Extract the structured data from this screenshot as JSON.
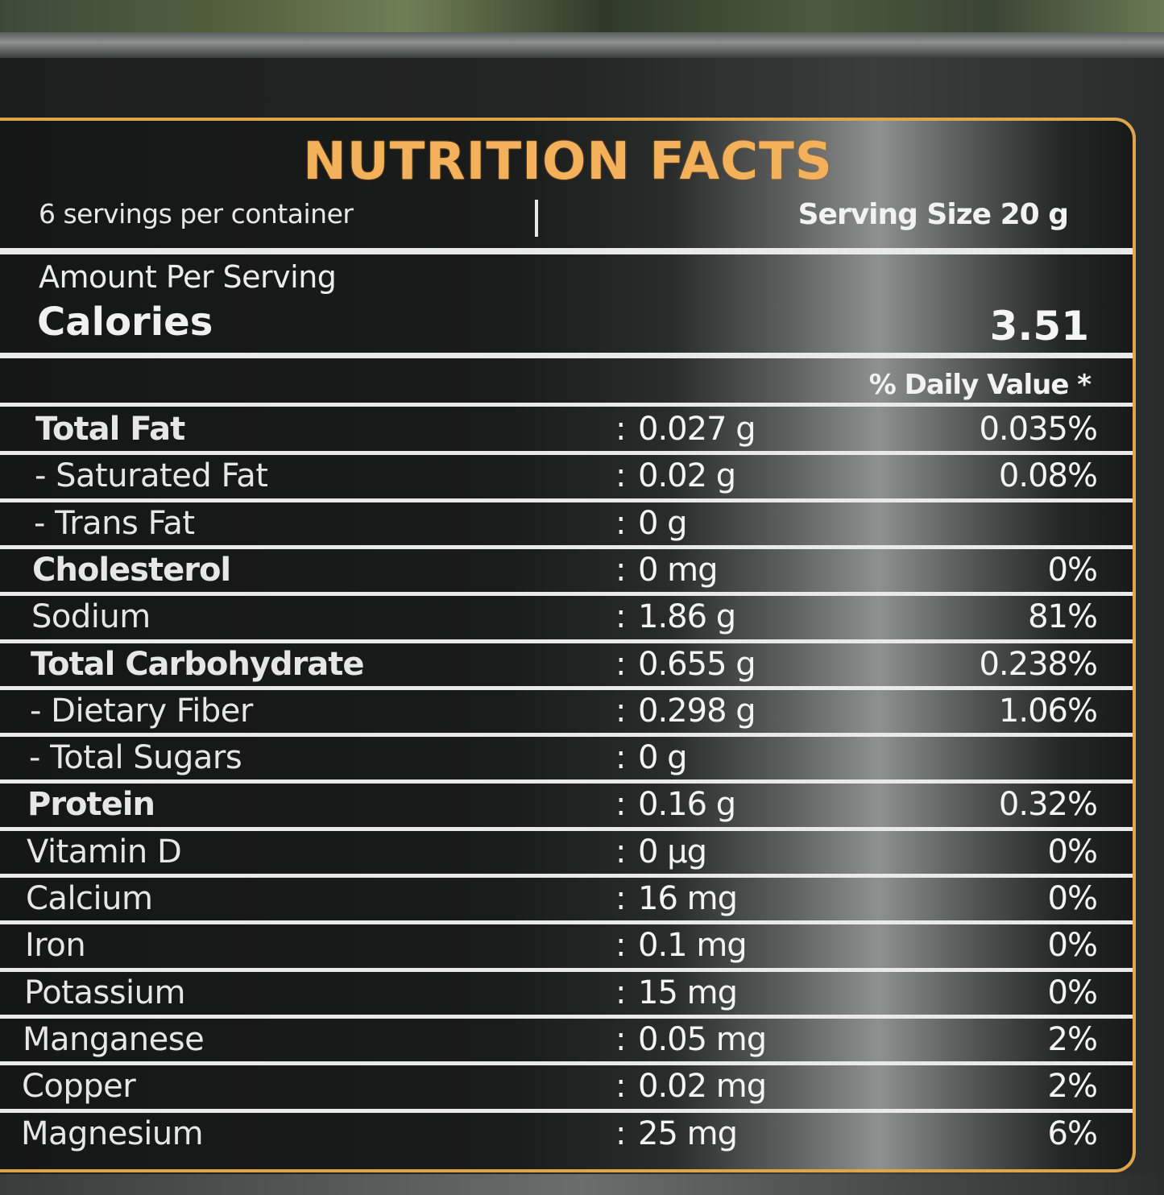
{
  "title": "NUTRITION FACTS",
  "servings_per_container": "6 servings per container",
  "serving_size": "Serving Size 20 g",
  "amount_per_serving": "Amount Per Serving",
  "calories_label": "Calories",
  "calories_value": "3.51",
  "daily_value_header": "% Daily Value *",
  "colors": {
    "accent": "#e0a54c",
    "title": "#f2b15a",
    "text": "#e6e6e6"
  },
  "nutrients": [
    {
      "name": "Total Fat",
      "bold": true,
      "colon": ":",
      "amount": "0.027 g",
      "dv": "0.035%"
    },
    {
      "name": "- Saturated Fat",
      "bold": false,
      "colon": ":",
      "amount": "0.02 g",
      "dv": "0.08%"
    },
    {
      "name": "- Trans Fat",
      "bold": false,
      "colon": ":",
      "amount": "0 g",
      "dv": ""
    },
    {
      "name": "Cholesterol",
      "bold": true,
      "colon": ":",
      "amount": "0 mg",
      "dv": "0%"
    },
    {
      "name": "Sodium",
      "bold": false,
      "colon": ":",
      "amount": "1.86 g",
      "dv": "81%"
    },
    {
      "name": "Total Carbohydrate",
      "bold": true,
      "colon": ":",
      "amount": "0.655 g",
      "dv": "0.238%"
    },
    {
      "name": "- Dietary Fiber",
      "bold": false,
      "colon": ":",
      "amount": "0.298 g",
      "dv": "1.06%"
    },
    {
      "name": "- Total Sugars",
      "bold": false,
      "colon": ":",
      "amount": "0 g",
      "dv": ""
    },
    {
      "name": "Protein",
      "bold": true,
      "colon": ":",
      "amount": "0.16 g",
      "dv": "0.32%"
    },
    {
      "name": "Vitamin D",
      "bold": false,
      "colon": ":",
      "amount": "0 µg",
      "dv": "0%"
    },
    {
      "name": "Calcium",
      "bold": false,
      "colon": ":",
      "amount": "16 mg",
      "dv": "0%"
    },
    {
      "name": "Iron",
      "bold": false,
      "colon": ":",
      "amount": "0.1 mg",
      "dv": "0%"
    },
    {
      "name": "Potassium",
      "bold": false,
      "colon": ":",
      "amount": "15 mg",
      "dv": "0%"
    },
    {
      "name": "Manganese",
      "bold": false,
      "colon": ":",
      "amount": "0.05 mg",
      "dv": "2%"
    },
    {
      "name": "Copper",
      "bold": false,
      "colon": ":",
      "amount": "0.02 mg",
      "dv": "2%"
    },
    {
      "name": "Magnesium",
      "bold": false,
      "colon": ":",
      "amount": "25 mg",
      "dv": "6%"
    }
  ]
}
